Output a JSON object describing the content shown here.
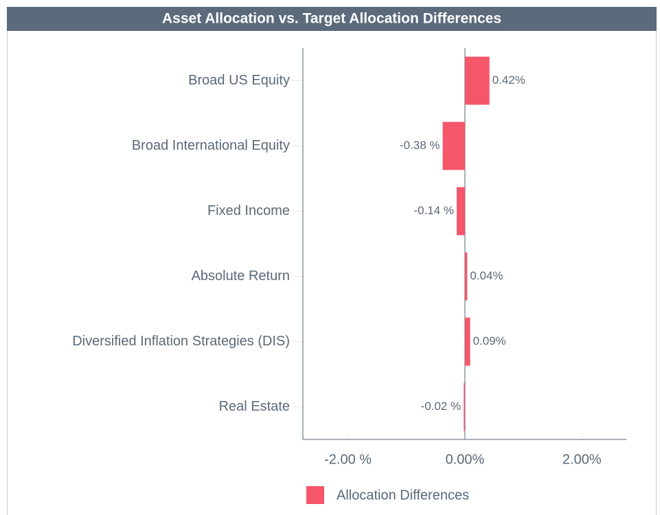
{
  "chart_data": {
    "type": "hbar",
    "title": "Asset Allocation vs. Target Allocation Differences",
    "categories": [
      "Broad US Equity",
      "Broad International Equity",
      "Fixed Income",
      "Absolute Return",
      "Diversified Inflation Strategies (DIS)",
      "Real Estate"
    ],
    "series": [
      {
        "name": "Allocation Differences",
        "color": "#f5566a",
        "values": [
          0.42,
          -0.38,
          -0.14,
          0.04,
          0.09,
          -0.02
        ],
        "value_labels": [
          "0.42%",
          "-0.38 %",
          "-0.14 %",
          "0.04%",
          "0.09%",
          "-0.02 %"
        ]
      }
    ],
    "xlim": [
      -2.77,
      2.76
    ],
    "xticks": [
      {
        "value": -2,
        "label": "-2.00 %"
      },
      {
        "value": 0,
        "label": "0.00%"
      },
      {
        "value": 2,
        "label": "2.00%"
      }
    ],
    "legend": "bottom"
  }
}
